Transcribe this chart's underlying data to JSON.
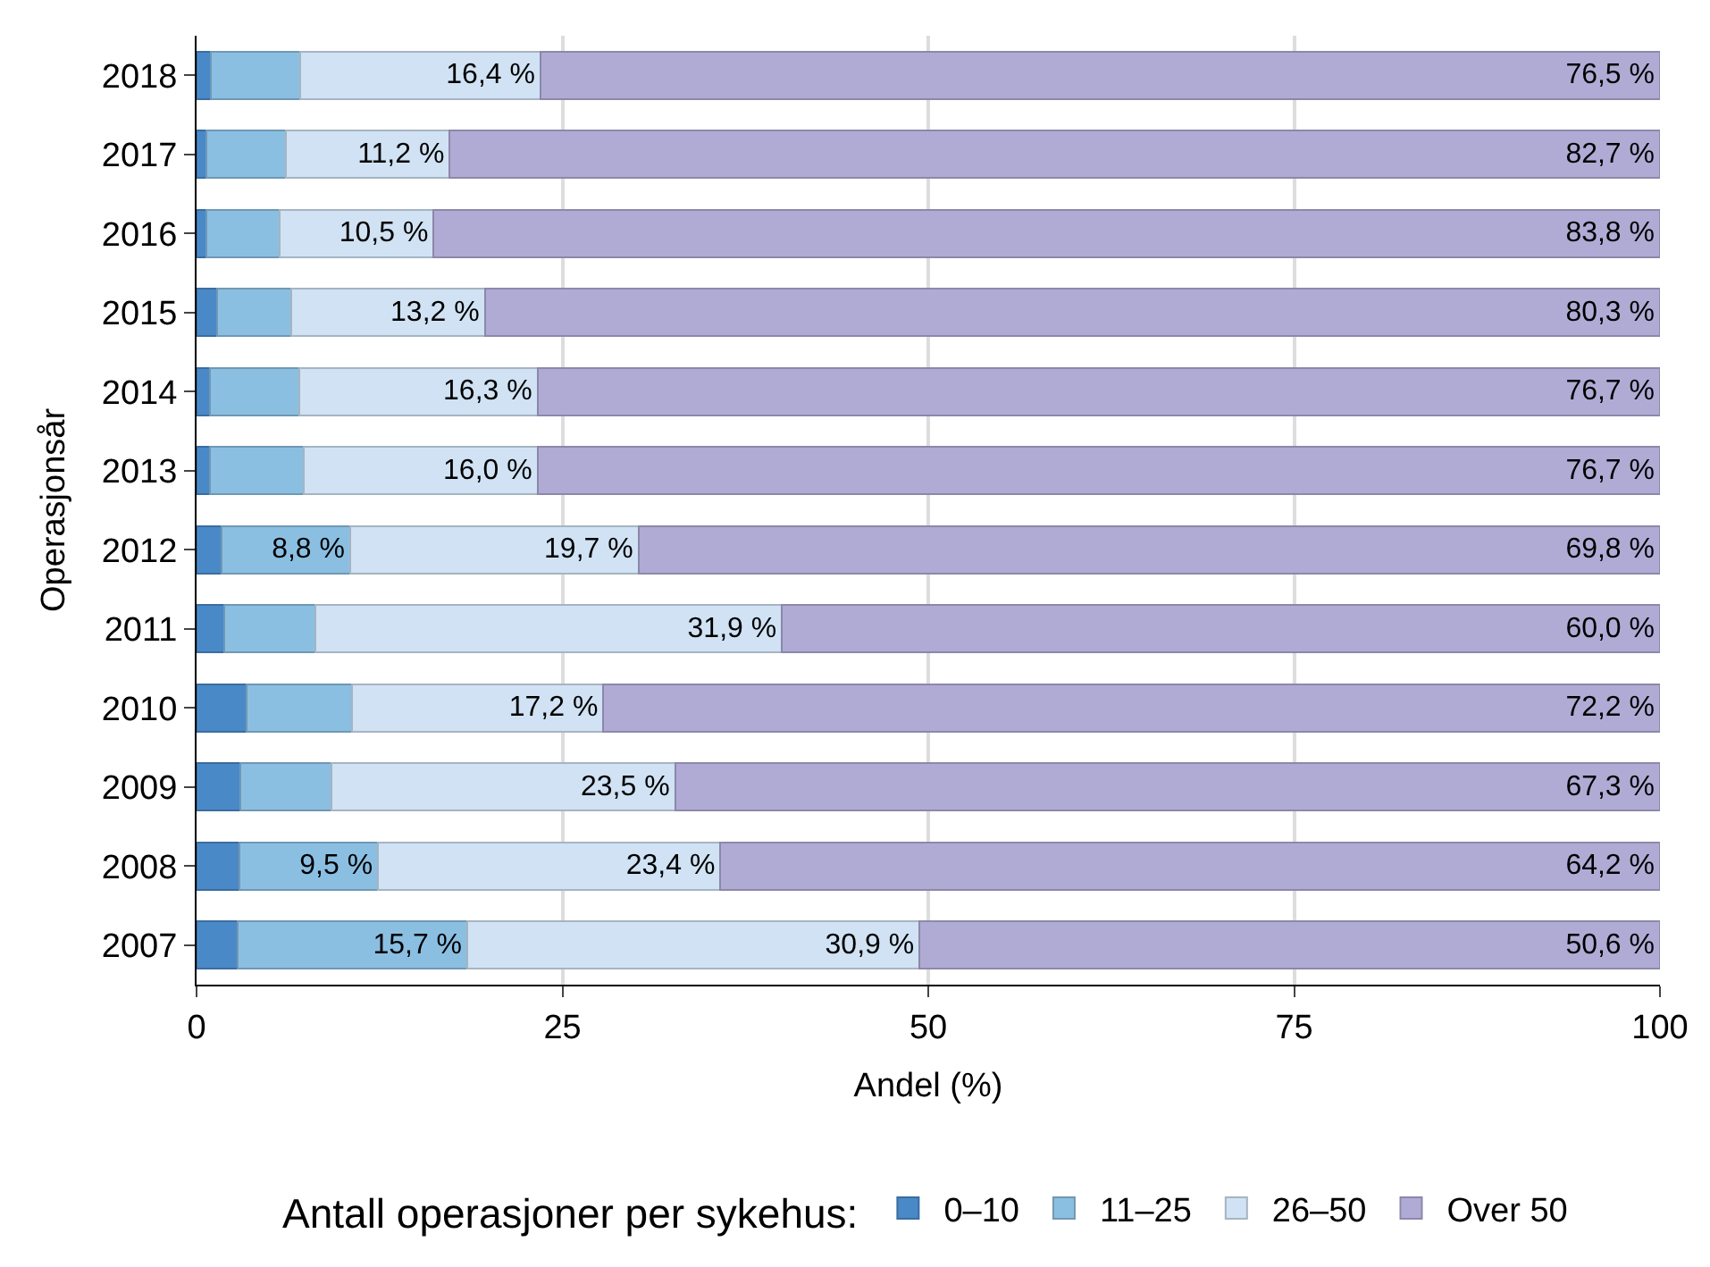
{
  "chart_data": {
    "type": "bar",
    "orientation": "horizontal",
    "stacked": true,
    "xlabel": "Andel (%)",
    "ylabel": "Operasjonsår",
    "legend_title": "Antall operasjoner per sykehus:",
    "legend": "bottom",
    "grid": "x",
    "xlim": [
      0,
      100
    ],
    "xticks": [
      0,
      25,
      50,
      75,
      100
    ],
    "categories": [
      "2018",
      "2017",
      "2016",
      "2015",
      "2014",
      "2013",
      "2012",
      "2011",
      "2010",
      "2009",
      "2008",
      "2007"
    ],
    "series": [
      {
        "name": "0–10",
        "color": "#4a89c8",
        "values": [
          1.0,
          0.7,
          0.7,
          1.4,
          0.9,
          0.9,
          1.7,
          1.9,
          3.4,
          3.0,
          2.9,
          2.8
        ],
        "value_labels": [
          null,
          null,
          null,
          null,
          null,
          null,
          null,
          null,
          null,
          null,
          null,
          null
        ]
      },
      {
        "name": "11–25",
        "color": "#8bbfe2",
        "values": [
          6.1,
          5.4,
          5.0,
          5.1,
          6.1,
          6.4,
          8.8,
          6.2,
          7.2,
          6.2,
          9.5,
          15.7
        ],
        "value_labels": [
          null,
          null,
          null,
          null,
          null,
          null,
          "8,8 %",
          null,
          null,
          null,
          "9,5 %",
          "15,7 %"
        ]
      },
      {
        "name": "26–50",
        "color": "#d0e2f3",
        "values": [
          16.4,
          11.2,
          10.5,
          13.2,
          16.3,
          16.0,
          19.7,
          31.9,
          17.2,
          23.5,
          23.4,
          30.9
        ],
        "value_labels": [
          "16,4 %",
          "11,2 %",
          "10,5 %",
          "13,2 %",
          "16,3 %",
          "16,0 %",
          "19,7 %",
          "31,9 %",
          "17,2 %",
          "23,5 %",
          "23,4 %",
          "30,9 %"
        ]
      },
      {
        "name": "Over 50",
        "color": "#afabd5",
        "values": [
          76.5,
          82.7,
          83.8,
          80.3,
          76.7,
          76.7,
          69.8,
          60.0,
          72.2,
          67.3,
          64.2,
          50.6
        ],
        "value_labels": [
          "76,5 %",
          "82,7 %",
          "83,8 %",
          "80,3 %",
          "76,7 %",
          "76,7 %",
          "69,8 %",
          "60,0 %",
          "72,2 %",
          "67,3 %",
          "64,2 %",
          "50,6 %"
        ]
      }
    ]
  }
}
